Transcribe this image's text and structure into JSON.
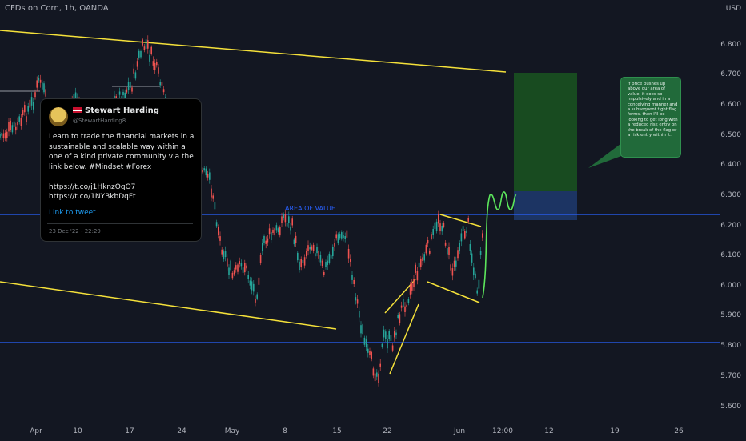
{
  "header": {
    "title": "CFDs on Corn, 1h, OANDA"
  },
  "price_axis": {
    "currency": "USD",
    "labels": [
      "6.800",
      "6.700",
      "6.600",
      "6.500",
      "6.400",
      "6.300",
      "6.200",
      "6.100",
      "6.000",
      "5.900",
      "5.800",
      "5.700",
      "5.600"
    ]
  },
  "time_axis": {
    "labels": [
      "Apr",
      "10",
      "17",
      "24",
      "May",
      "8",
      "15",
      "22",
      "Jun",
      "12:00",
      "12",
      "19",
      "26"
    ]
  },
  "annotations": {
    "area_of_value": "AREA OF VALUE",
    "note": "If price pushes up above our area of value, it does so impulsively and in a conceiving manner and a subsequent tight flag forms, then I'll be looking to get long with a reduced risk entry on the break of the flag or a risk entry within it."
  },
  "tweet": {
    "name": "Stewart Harding",
    "handle": "@StewartHarding8",
    "body": "Learn to trade the financial markets in a sustainable and scalable way within a one of a kind private community via the link below. #Mindset #Forex\n\nhttps://t.co/j1HknzOqO7 https://t.co/1NYBkbDqFt",
    "link": "Link to tweet",
    "date": "23 Dec '22 - 22:29"
  },
  "colors": {
    "background": "#131722",
    "up": "#26a69a",
    "down": "#ef5350",
    "trendline": "#f5e13a",
    "level": "#2962ff",
    "target_zone": "#1b5e20",
    "risk_zone": "#1e3a6e",
    "projection": "#5ce65c"
  }
}
